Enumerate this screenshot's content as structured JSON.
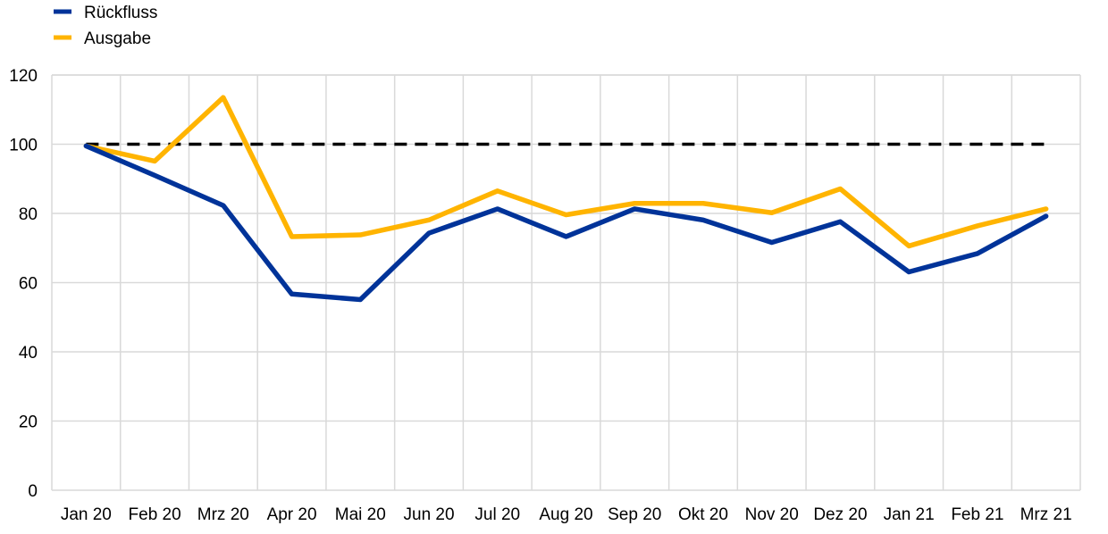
{
  "chart_data": {
    "type": "line",
    "categories": [
      "Jan 20",
      "Feb 20",
      "Mrz 20",
      "Apr 20",
      "Mai 20",
      "Jun 20",
      "Jul 20",
      "Aug 20",
      "Sep 20",
      "Okt 20",
      "Nov 20",
      "Dez 20",
      "Jan 21",
      "Feb 21",
      "Mrz 21"
    ],
    "series": [
      {
        "name": "Rückfluss",
        "color": "#003399",
        "style": "solid",
        "values": [
          99.5,
          91,
          82.3,
          56.7,
          55.1,
          74.3,
          81.3,
          73.3,
          81.3,
          78.1,
          71.6,
          77.6,
          63.1,
          68.4,
          79.2
        ]
      },
      {
        "name": "Ausgabe",
        "color": "#FFB400",
        "style": "solid",
        "values": [
          99.5,
          95.1,
          113.5,
          73.3,
          73.8,
          78.1,
          86.5,
          79.6,
          82.9,
          82.9,
          80.2,
          87.1,
          70.6,
          76.4,
          81.3
        ]
      }
    ],
    "reference_line": {
      "value": 100,
      "color": "#000000",
      "style": "dashed"
    },
    "ylim": [
      0,
      120
    ],
    "yticks": [
      0,
      20,
      40,
      60,
      80,
      100,
      120
    ],
    "title": "",
    "xlabel": "",
    "ylabel": "",
    "grid": true,
    "legend_position": "top-left"
  }
}
